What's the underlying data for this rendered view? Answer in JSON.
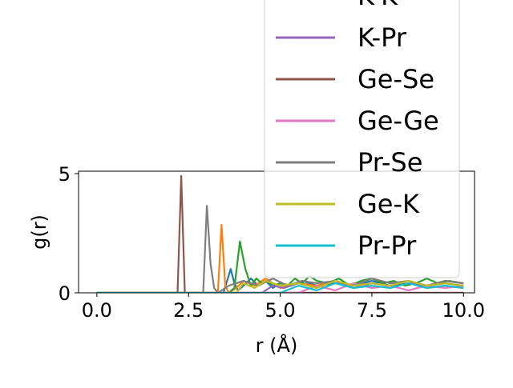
{
  "chart_data": {
    "type": "line",
    "xlabel": "r (Å)",
    "ylabel": "g(r)",
    "xlim": [
      -0.5,
      10.3
    ],
    "ylim": [
      0,
      5.1
    ],
    "xticks": [
      0.0,
      2.5,
      5.0,
      7.5,
      10.0
    ],
    "xtick_labels": [
      "0.0",
      "2.5",
      "5.0",
      "7.5",
      "10.0"
    ],
    "yticks": [
      0,
      5
    ],
    "ytick_labels": [
      "0",
      "5"
    ],
    "grid": false,
    "legend_position": "upper-right, extending above the axes",
    "series": [
      {
        "name": "",
        "color": "#1f77b4",
        "x": [
          0,
          3.45,
          3.55,
          3.65,
          3.75,
          3.85,
          4.0,
          4.2,
          4.4,
          4.6,
          4.8,
          5.0,
          5.3,
          5.6,
          6.0,
          6.5,
          7.0,
          7.5,
          8.0,
          8.5,
          9.0,
          9.5,
          10.0
        ],
        "y": [
          0,
          0,
          0.5,
          1.0,
          0.4,
          0.1,
          0.3,
          0.6,
          0.3,
          0.5,
          0.2,
          0.4,
          0.3,
          0.5,
          0.3,
          0.4,
          0.3,
          0.5,
          0.3,
          0.4,
          0.3,
          0.4,
          0.3
        ]
      },
      {
        "name": "",
        "color": "#ff7f0e",
        "x": [
          0,
          3.3,
          3.4,
          3.5,
          3.6,
          3.8,
          4.0,
          4.3,
          4.6,
          5.0,
          5.5,
          6.0,
          6.5,
          7.0,
          7.5,
          8.0,
          8.5,
          9.0,
          9.5,
          10.0
        ],
        "y": [
          0,
          0,
          2.85,
          0.3,
          0.0,
          0.2,
          0.5,
          0.3,
          0.6,
          0.2,
          0.4,
          0.3,
          0.5,
          0.3,
          0.6,
          0.4,
          0.5,
          0.3,
          0.5,
          0.4
        ]
      },
      {
        "name": "",
        "color": "#2ca02c",
        "x": [
          0,
          3.6,
          3.75,
          3.9,
          4.05,
          4.2,
          4.35,
          4.5,
          4.65,
          4.8,
          5.0,
          5.2,
          5.4,
          5.6,
          5.8,
          6.0,
          6.3,
          6.6,
          6.9,
          7.2,
          7.5,
          7.8,
          8.1,
          8.4,
          8.7,
          9.0,
          9.3,
          9.6,
          10.0
        ],
        "y": [
          0,
          0,
          0.2,
          2.15,
          1.0,
          0.3,
          0.6,
          0.4,
          0.5,
          0.3,
          0.4,
          0.3,
          0.6,
          0.4,
          0.7,
          0.5,
          0.4,
          0.6,
          0.3,
          0.5,
          0.6,
          0.4,
          0.5,
          0.3,
          0.4,
          0.6,
          0.4,
          0.5,
          0.4
        ]
      },
      {
        "name": "",
        "color": "#d62728",
        "x": [
          0,
          10.0
        ],
        "y": [
          0,
          0
        ]
      },
      {
        "name": "",
        "color": "#9467bd",
        "x": [
          0,
          4.5,
          4.8,
          5.1,
          5.5,
          6.0,
          6.5,
          7.0,
          7.5,
          8.0,
          8.5,
          9.0,
          9.5,
          10.0
        ],
        "y": [
          0,
          0,
          0.3,
          0.2,
          0.4,
          0.2,
          0.5,
          0.2,
          0.4,
          0.3,
          0.5,
          0.2,
          0.3,
          0.2
        ]
      },
      {
        "name": "",
        "color": "#8c564b",
        "x": [
          0,
          2.2,
          2.3,
          2.4,
          10.0
        ],
        "y": [
          0,
          0,
          4.9,
          0,
          0
        ]
      },
      {
        "name": "",
        "color": "#e377c2",
        "x": [
          0,
          5.5,
          6.0,
          6.5,
          7.0,
          7.5,
          8.0,
          8.5,
          9.0,
          9.5,
          10.0
        ],
        "y": [
          0,
          0,
          0.3,
          0.1,
          0.4,
          0.2,
          0.3,
          0.1,
          0.3,
          0.2,
          0.3
        ]
      },
      {
        "name": "",
        "color": "#7f7f7f",
        "x": [
          0,
          2.9,
          3.0,
          3.1,
          3.2,
          3.3,
          3.6,
          4.0,
          4.4,
          4.8,
          5.2,
          5.6,
          6.0,
          6.5,
          7.0,
          7.5,
          8.0,
          8.5,
          9.0,
          9.5,
          10.0
        ],
        "y": [
          0,
          0,
          3.65,
          1.2,
          0.2,
          0.0,
          0.3,
          0.5,
          0.3,
          0.6,
          0.3,
          0.5,
          0.4,
          0.5,
          0.3,
          0.6,
          0.4,
          0.5,
          0.3,
          0.5,
          0.4
        ]
      },
      {
        "name": "",
        "color": "#bcbd22",
        "x": [
          0,
          3.8,
          4.0,
          4.3,
          4.6,
          5.0,
          5.5,
          6.0,
          6.5,
          7.0,
          7.5,
          8.0,
          8.5,
          9.0,
          9.5,
          10.0
        ],
        "y": [
          0,
          0,
          0.4,
          0.2,
          0.5,
          0.3,
          0.4,
          0.2,
          0.5,
          0.3,
          0.4,
          0.3,
          0.5,
          0.3,
          0.4,
          0.3
        ]
      },
      {
        "name": "",
        "color": "#17becf",
        "x": [
          0,
          5.0,
          5.5,
          6.0,
          6.5,
          7.0,
          7.5,
          8.0,
          8.5,
          9.0,
          9.5,
          10.0
        ],
        "y": [
          0,
          0,
          0.3,
          0.1,
          0.4,
          0.2,
          0.3,
          0.2,
          0.4,
          0.2,
          0.3,
          0.2
        ]
      }
    ],
    "legend": [
      {
        "label": "K-K",
        "color": "#d62728"
      },
      {
        "label": "K-Pr",
        "color": "#9467bd"
      },
      {
        "label": "Ge-Se",
        "color": "#8c564b"
      },
      {
        "label": "Ge-Ge",
        "color": "#e377c2"
      },
      {
        "label": "Pr-Se",
        "color": "#7f7f7f"
      },
      {
        "label": "Ge-K",
        "color": "#bcbd22"
      },
      {
        "label": "Pr-Pr",
        "color": "#17becf"
      }
    ]
  }
}
